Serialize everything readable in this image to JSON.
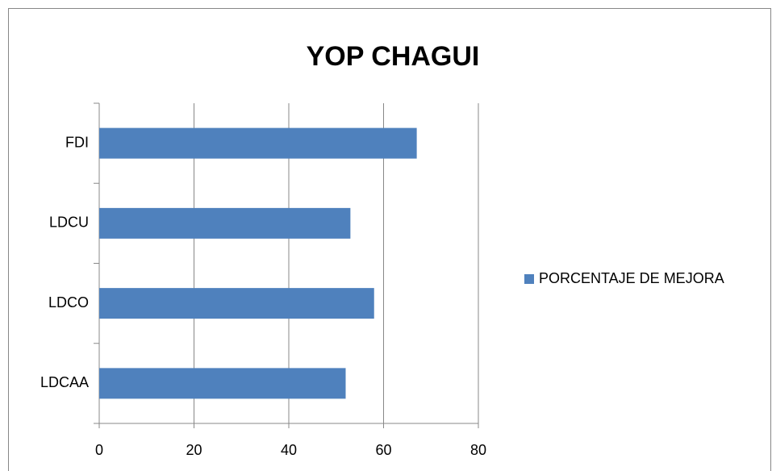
{
  "chart_data": {
    "type": "bar",
    "orientation": "horizontal",
    "title": "YOP CHAGUI",
    "categories": [
      "FDI",
      "LDCU",
      "LDCO",
      "LDCAA"
    ],
    "series": [
      {
        "name": "PORCENTAJE DE MEJORA",
        "color": "#4f81bd",
        "values": [
          67,
          53,
          58,
          52
        ]
      }
    ],
    "xlim": [
      0,
      80
    ],
    "xticks": [
      0,
      20,
      40,
      60,
      80
    ],
    "grid": true,
    "legend": "right"
  }
}
